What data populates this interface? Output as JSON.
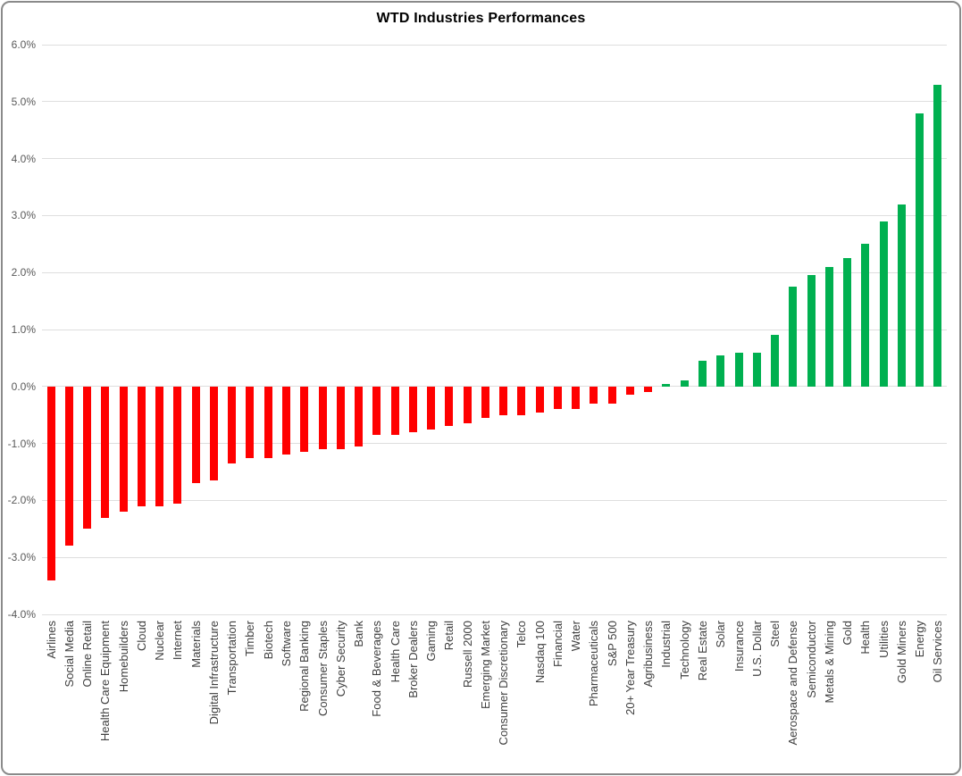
{
  "chart_data": {
    "type": "bar",
    "title": "WTD Industries Performances",
    "xlabel": "",
    "ylabel": "",
    "ylim": [
      -4.0,
      6.0
    ],
    "ytick_step": 1.0,
    "yticks": [
      "6.0%",
      "5.0%",
      "4.0%",
      "3.0%",
      "2.0%",
      "1.0%",
      "0.0%",
      "-1.0%",
      "-2.0%",
      "-3.0%",
      "-4.0%"
    ],
    "grid": true,
    "legend": "none",
    "bar_orientation": "vertical",
    "value_unit": "percent",
    "categories": [
      "Airlines",
      "Social Media",
      "Online Retail",
      "Health Care Equipment",
      "Homebuilders",
      "Cloud",
      "Nuclear",
      "Internet",
      "Materials",
      "Digital Infrastructure",
      "Transportation",
      "Timber",
      "Biotech",
      "Software",
      "Regional Banking",
      "Consumer Staples",
      "Cyber Security",
      "Bank",
      "Food & Beverages",
      "Health Care",
      "Broker Dealers",
      "Gaming",
      "Retail",
      "Russell 2000",
      "Emerging Market",
      "Consumer Discretionary",
      "Telco",
      "Nasdaq 100",
      "Financial",
      "Water",
      "Pharmaceuticals",
      "S&P 500",
      "20+ Year Treasury",
      "Agribusiness",
      "Industrial",
      "Technology",
      "Real Estate",
      "Solar",
      "Insurance",
      "U.S. Dollar",
      "Steel",
      "Aerospace and Defense",
      "Semiconductor",
      "Metals & Mining",
      "Gold",
      "Health",
      "Utilities",
      "Gold Miners",
      "Energy",
      "Oil Services"
    ],
    "values": [
      -3.4,
      -2.8,
      -2.5,
      -2.3,
      -2.2,
      -2.1,
      -2.1,
      -2.05,
      -1.7,
      -1.65,
      -1.35,
      -1.25,
      -1.25,
      -1.2,
      -1.15,
      -1.1,
      -1.1,
      -1.05,
      -0.85,
      -0.85,
      -0.8,
      -0.75,
      -0.7,
      -0.65,
      -0.55,
      -0.5,
      -0.5,
      -0.45,
      -0.4,
      -0.4,
      -0.3,
      -0.3,
      -0.15,
      -0.1,
      0.05,
      0.1,
      0.45,
      0.55,
      0.6,
      0.6,
      0.9,
      1.75,
      1.95,
      2.1,
      2.25,
      2.5,
      2.9,
      3.2,
      4.8,
      5.3
    ],
    "colors": {
      "positive_bar": "#00B050",
      "negative_bar": "#FF0000",
      "gridline": "#DEDEDE",
      "ytick_text": "#595959",
      "category_text": "#3F3F3F",
      "title_text": "#000000",
      "frame_border": "#8A8A8A",
      "background": "#FFFFFF"
    }
  }
}
